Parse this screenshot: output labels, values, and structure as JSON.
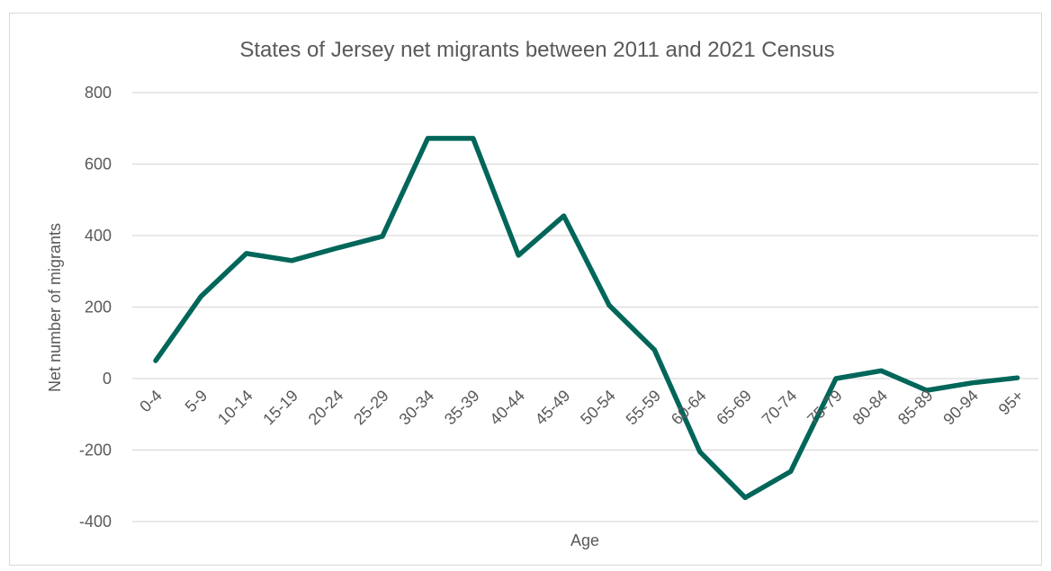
{
  "chart_data": {
    "type": "line",
    "title": "States of Jersey net migrants between 2011 and 2021 Census",
    "xlabel": "Age",
    "ylabel": "Net number of migrants",
    "ylim": [
      -400,
      800
    ],
    "yticks": [
      -400,
      -200,
      0,
      200,
      400,
      600,
      800
    ],
    "grid": true,
    "legend": "none",
    "categories": [
      "0-4",
      "5-9",
      "10-14",
      "15-19",
      "20-24",
      "25-29",
      "30-34",
      "35-39",
      "40-44",
      "45-49",
      "50-54",
      "55-59",
      "60-64",
      "65-69",
      "70-74",
      "75-79",
      "80-84",
      "85-89",
      "90-94",
      "95+"
    ],
    "series": [
      {
        "color": "#00665a",
        "values": [
          50,
          230,
          350,
          330,
          365,
          398,
          672,
          672,
          345,
          455,
          205,
          80,
          -205,
          -333,
          -260,
          0,
          22,
          -33,
          -12,
          2
        ]
      }
    ]
  }
}
